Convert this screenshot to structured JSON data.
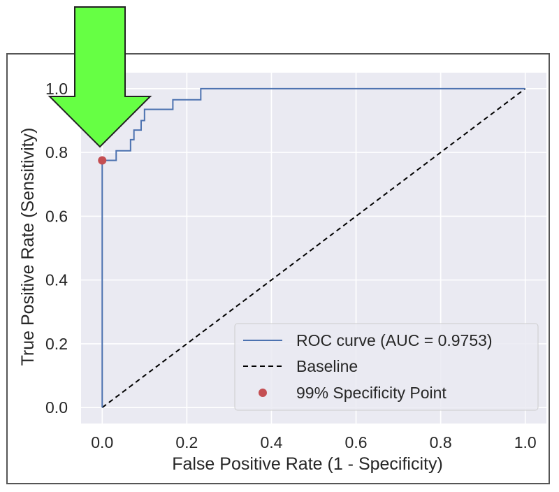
{
  "chart_data": {
    "type": "line",
    "title": "",
    "xlabel": "False Positive Rate (1 - Specificity)",
    "ylabel": "True Positive Rate (Sensitivity)",
    "xlim": [
      -0.05,
      1.05
    ],
    "ylim": [
      -0.05,
      1.05
    ],
    "x_ticks": [
      0.0,
      0.2,
      0.4,
      0.6,
      0.8,
      1.0
    ],
    "y_ticks": [
      0.0,
      0.2,
      0.4,
      0.6,
      0.8,
      1.0
    ],
    "x_tick_labels": [
      "0.0",
      "0.2",
      "0.4",
      "0.6",
      "0.8",
      "1.0"
    ],
    "y_tick_labels": [
      "0.0",
      "0.2",
      "0.4",
      "0.6",
      "0.8",
      "1.0"
    ],
    "grid": true,
    "legend_position": "lower-right",
    "series": [
      {
        "name": "ROC curve (AUC = 0.9753)",
        "style": "solid",
        "color": "#4c72b0",
        "x": [
          0.0,
          0.0,
          0.0,
          0.033,
          0.033,
          0.067,
          0.067,
          0.075,
          0.075,
          0.092,
          0.092,
          0.1,
          0.1,
          0.167,
          0.167,
          0.233,
          0.233,
          1.0
        ],
        "y": [
          0.0,
          0.775,
          0.775,
          0.775,
          0.805,
          0.805,
          0.84,
          0.84,
          0.87,
          0.87,
          0.9,
          0.9,
          0.935,
          0.935,
          0.965,
          0.965,
          1.0,
          1.0
        ]
      },
      {
        "name": "Baseline",
        "style": "dashed",
        "color": "#000000",
        "x": [
          0.0,
          1.0
        ],
        "y": [
          0.0,
          1.0
        ]
      },
      {
        "name": "99% Specificity Point",
        "style": "marker",
        "color": "#c44e52",
        "x": [
          0.0
        ],
        "y": [
          0.775
        ]
      }
    ],
    "annotation": {
      "type": "arrow",
      "color": "#66ff44",
      "points_to": "99% Specificity Point"
    }
  }
}
